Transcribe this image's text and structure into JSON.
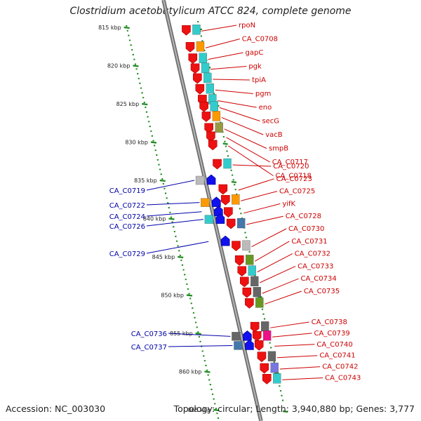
{
  "title": "Clostridium acetobutylicum ATCC 824, complete genome",
  "accession_text": "Accession: NC_003030",
  "stats_text": "Topology: circular; Length: 3,940,880 bp; Genes: 3,777",
  "colors": {
    "backbone": "#8c8c8c",
    "ruler": "#1e8a1e",
    "forward_label": "#cc0000",
    "reverse_label": "#0000aa",
    "cds_forward": "#ee1111",
    "cds_reverse": "#1111ee",
    "cyan": "#33cccc",
    "orange": "#ff9900",
    "olive": "#999944",
    "steel": "#4477aa",
    "grey": "#666666",
    "lightgrey": "#bbbbbb",
    "green": "#669922",
    "magenta": "#ee1188",
    "violet": "#7777dd"
  },
  "ruler_labels": [
    {
      "kbp": 815,
      "label": "815 kbp"
    },
    {
      "kbp": 820,
      "label": "820 kbp"
    },
    {
      "kbp": 825,
      "label": "825 kbp"
    },
    {
      "kbp": 830,
      "label": "830 kbp"
    },
    {
      "kbp": 835,
      "label": "835 kbp"
    },
    {
      "kbp": 840,
      "label": "840 kbp"
    },
    {
      "kbp": 845,
      "label": "845 kbp"
    },
    {
      "kbp": 850,
      "label": "850 kbp"
    },
    {
      "kbp": 855,
      "label": "855 kbp"
    },
    {
      "kbp": 860,
      "label": "860 kbp"
    },
    {
      "kbp": 865,
      "label": "865 kbp"
    }
  ],
  "forward_genes": [
    {
      "label": "rpoN",
      "kbp": 815.3,
      "cat": "cyan"
    },
    {
      "label": "CA_C0708",
      "kbp": 817.5,
      "cat": "orange"
    },
    {
      "label": "gapC",
      "kbp": 819.0,
      "cat": "cyan"
    },
    {
      "label": "pgk",
      "kbp": 820.3,
      "cat": "cyan"
    },
    {
      "label": "tpiA",
      "kbp": 821.6,
      "cat": "cyan"
    },
    {
      "label": "pgm",
      "kbp": 823.0,
      "cat": "cyan"
    },
    {
      "label": "eno",
      "kbp": 824.4,
      "cat": "cyan"
    },
    {
      "label": "secG",
      "kbp": 825.3,
      "cat": "cyan"
    },
    {
      "label": "vacB",
      "kbp": 826.6,
      "cat": "orange"
    },
    {
      "label": "smpB",
      "kbp": 828.1,
      "cat": "olive"
    },
    {
      "label": "CA_C0717",
      "kbp": 829.2,
      "cat": "none"
    },
    {
      "label": "CA_C0718",
      "kbp": 830.3,
      "cat": "none"
    },
    {
      "label": "CA_C0720",
      "kbp": 832.8,
      "cat": "cyan"
    },
    {
      "label": "CA_C0723",
      "kbp": 836.1,
      "cat": "none"
    },
    {
      "label": "CA_C0725",
      "kbp": 837.5,
      "cat": "orange"
    },
    {
      "label": "yifK",
      "kbp": 839.1,
      "cat": "none"
    },
    {
      "label": "CA_C0728",
      "kbp": 840.6,
      "cat": "steel"
    },
    {
      "label": "CA_C0730",
      "kbp": 843.5,
      "cat": "lightgrey"
    },
    {
      "label": "CA_C0731",
      "kbp": 845.4,
      "cat": "green"
    },
    {
      "label": "CA_C0732",
      "kbp": 846.8,
      "cat": "cyan"
    },
    {
      "label": "CA_C0733",
      "kbp": 848.2,
      "cat": "grey"
    },
    {
      "label": "CA_C0734",
      "kbp": 849.6,
      "cat": "grey"
    },
    {
      "label": "CA_C0735",
      "kbp": 851.0,
      "cat": "green"
    },
    {
      "label": "CA_C0738",
      "kbp": 854.1,
      "cat": "grey"
    },
    {
      "label": "CA_C0739",
      "kbp": 855.3,
      "cat": "magenta"
    },
    {
      "label": "CA_C0740",
      "kbp": 856.5,
      "cat": "none"
    },
    {
      "label": "CA_C0741",
      "kbp": 858.0,
      "cat": "grey"
    },
    {
      "label": "CA_C0742",
      "kbp": 859.5,
      "cat": "violet"
    },
    {
      "label": "CA_C0743",
      "kbp": 860.9,
      "cat": "cyan"
    }
  ],
  "reverse_genes": [
    {
      "label": "CA_C0719",
      "kbp": 835.0,
      "cat": "lightgrey"
    },
    {
      "label": "CA_C0722",
      "kbp": 837.9,
      "cat": "orange"
    },
    {
      "label": "CA_C0724",
      "kbp": 839.1,
      "cat": "none"
    },
    {
      "label": "CA_C0726",
      "kbp": 840.1,
      "cat": "cyan"
    },
    {
      "label": "CA_C0729",
      "kbp": 843.0,
      "cat": "none"
    },
    {
      "label": "CA_C0736",
      "kbp": 855.4,
      "cat": "grey"
    },
    {
      "label": "CA_C0737",
      "kbp": 856.6,
      "cat": "steel"
    }
  ]
}
